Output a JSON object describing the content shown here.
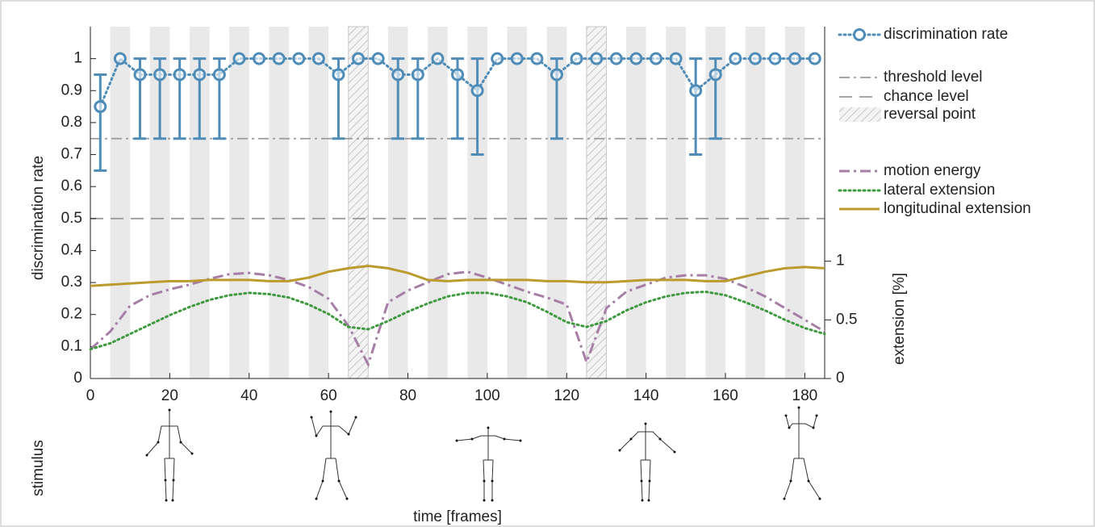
{
  "chart_data": {
    "type": "line",
    "ylabel": "discrimination rate",
    "y2label": "extension [%]",
    "xlabel": "time [frames]",
    "row_label": "stimulus",
    "xlim": [
      0,
      185
    ],
    "xticks": [
      0,
      20,
      40,
      60,
      80,
      100,
      120,
      140,
      160,
      180
    ],
    "ylim": [
      0,
      1.1
    ],
    "yticks": [
      0,
      0.1,
      0.2,
      0.3,
      0.4,
      0.5,
      0.6,
      0.7,
      0.8,
      0.9,
      1
    ],
    "y2lim": [
      0,
      3
    ],
    "y2ticks": [
      0,
      0.5,
      1
    ],
    "x": [
      0,
      5,
      10,
      15,
      20,
      25,
      30,
      35,
      40,
      45,
      50,
      55,
      60,
      65,
      70,
      75,
      80,
      85,
      90,
      95,
      100,
      105,
      110,
      115,
      120,
      125,
      130,
      135,
      140,
      145,
      150,
      155,
      160,
      165,
      170,
      175,
      180,
      185
    ],
    "series": [
      {
        "name": "discrimination rate",
        "color": "#4f8db8",
        "style": "dotted",
        "axis": "y",
        "x": [
          2.5,
          7.5,
          12.5,
          17.5,
          22.5,
          27.5,
          32.5,
          37.5,
          42.5,
          47.5,
          52.5,
          57.5,
          62.5,
          67.5,
          72.5,
          77.5,
          82.5,
          87.5,
          92.5,
          97.5,
          102.5,
          107.5,
          112.5,
          117.5,
          122.5,
          127.5,
          132.5,
          137.5,
          142.5,
          147.5,
          152.5,
          157.5,
          162.5,
          167.5,
          172.5,
          177.5,
          182.5
        ],
        "values": [
          0.85,
          1,
          0.95,
          0.95,
          0.95,
          0.95,
          0.95,
          1,
          1,
          1,
          1,
          1,
          0.95,
          1,
          1,
          0.95,
          0.95,
          1,
          0.95,
          0.9,
          1,
          1,
          1,
          0.95,
          1,
          1,
          1,
          1,
          1,
          1,
          0.9,
          0.95,
          1,
          1,
          1,
          1,
          1
        ],
        "lower": [
          0.65,
          null,
          0.75,
          0.75,
          0.75,
          0.75,
          0.75,
          null,
          null,
          null,
          null,
          null,
          0.75,
          null,
          null,
          0.75,
          0.75,
          null,
          0.75,
          0.7,
          null,
          null,
          null,
          0.75,
          null,
          null,
          null,
          null,
          null,
          null,
          0.7,
          0.75,
          null,
          null,
          null,
          null,
          null
        ],
        "upper": [
          0.95,
          null,
          1,
          1,
          1,
          1,
          1,
          null,
          null,
          null,
          null,
          null,
          1,
          null,
          null,
          1,
          1,
          null,
          1,
          1,
          null,
          null,
          null,
          1,
          null,
          null,
          null,
          null,
          null,
          null,
          1,
          1,
          null,
          null,
          null,
          null,
          null
        ]
      },
      {
        "name": "motion energy",
        "color": "#a67ea6",
        "style": "dashdot",
        "axis": "y2",
        "values": [
          0.25,
          0.4,
          0.62,
          0.71,
          0.76,
          0.8,
          0.85,
          0.89,
          0.9,
          0.88,
          0.84,
          0.78,
          0.68,
          0.45,
          0.12,
          0.65,
          0.75,
          0.82,
          0.89,
          0.91,
          0.86,
          0.8,
          0.74,
          0.69,
          0.63,
          0.14,
          0.6,
          0.74,
          0.8,
          0.86,
          0.88,
          0.88,
          0.85,
          0.78,
          0.7,
          0.6,
          0.5,
          0.4
        ]
      },
      {
        "name": "lateral extension",
        "color": "#3f9a3f",
        "style": "dotted",
        "axis": "y2",
        "values": [
          0.25,
          0.3,
          0.38,
          0.46,
          0.54,
          0.61,
          0.67,
          0.71,
          0.73,
          0.72,
          0.69,
          0.63,
          0.55,
          0.44,
          0.42,
          0.49,
          0.57,
          0.64,
          0.7,
          0.73,
          0.73,
          0.7,
          0.65,
          0.57,
          0.48,
          0.44,
          0.49,
          0.58,
          0.65,
          0.7,
          0.73,
          0.74,
          0.71,
          0.65,
          0.58,
          0.5,
          0.43,
          0.38
        ]
      },
      {
        "name": "longitudinal extension",
        "color": "#bb9a2e",
        "style": "solid",
        "axis": "y2",
        "values": [
          0.79,
          0.8,
          0.81,
          0.82,
          0.83,
          0.83,
          0.84,
          0.84,
          0.84,
          0.83,
          0.83,
          0.86,
          0.91,
          0.94,
          0.96,
          0.94,
          0.9,
          0.84,
          0.83,
          0.84,
          0.84,
          0.84,
          0.84,
          0.83,
          0.83,
          0.82,
          0.82,
          0.83,
          0.84,
          0.84,
          0.84,
          0.83,
          0.83,
          0.87,
          0.91,
          0.94,
          0.95,
          0.94
        ]
      }
    ],
    "hlines": [
      {
        "name": "threshold level",
        "value": 0.75,
        "color": "#9a9a9a",
        "style": "dashdot"
      },
      {
        "name": "chance level",
        "value": 0.5,
        "color": "#9a9a9a",
        "style": "dashed"
      }
    ],
    "reversal": {
      "name": "reversal point",
      "ranges": [
        [
          65,
          70
        ],
        [
          125,
          130
        ]
      ]
    }
  }
}
